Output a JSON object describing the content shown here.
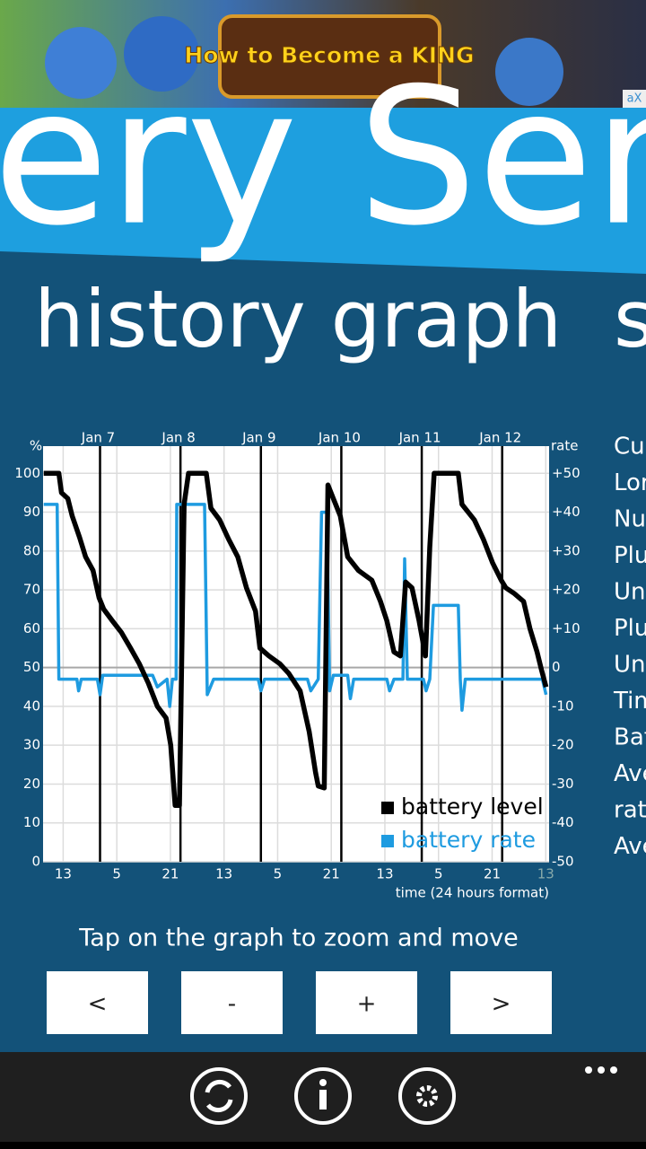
{
  "ad": {
    "text": "How to Become a KING",
    "badge": "aX"
  },
  "app_title": "ery Sen",
  "pivot": {
    "current": "history graph",
    "next": "s"
  },
  "chart_data": {
    "type": "line",
    "y_label": "%",
    "y2_label": "rate",
    "x_label": "time (24 hours format)",
    "xlim": [
      -17,
      134
    ],
    "xticks": [
      {
        "value": -11,
        "label": "13"
      },
      5,
      21,
      {
        "value": 37,
        "label": "13"
      },
      {
        "value": 53,
        "label": "5"
      },
      {
        "value": 69,
        "label": "21"
      },
      {
        "value": 85,
        "label": "13"
      },
      {
        "value": 101,
        "label": "5"
      },
      {
        "value": 117,
        "label": "21"
      },
      {
        "value": 133,
        "label": "13"
      }
    ],
    "x2ticks": [
      {
        "value": 0,
        "label": "Jan 7"
      },
      {
        "value": 24,
        "label": "Jan 8"
      },
      {
        "value": 48,
        "label": "Jan 9"
      },
      {
        "value": 72,
        "label": "Jan 10"
      },
      {
        "value": 96,
        "label": "Jan 11"
      },
      {
        "value": 120,
        "label": "Jan 12"
      }
    ],
    "ylim": [
      0,
      107
    ],
    "yticks": [
      0,
      10,
      20,
      30,
      40,
      50,
      60,
      70,
      80,
      90,
      100
    ],
    "y2lim": [
      -50,
      57
    ],
    "y2ticks": [
      -50,
      -40,
      -30,
      -20,
      -10,
      0,
      {
        "value": 10,
        "label": "+10"
      },
      {
        "value": 20,
        "label": "+20"
      },
      {
        "value": 30,
        "label": "+30"
      },
      {
        "value": 40,
        "label": "+40"
      },
      {
        "value": 50,
        "label": "+50"
      }
    ],
    "grid": true,
    "legend": "lower right",
    "series": [
      {
        "name": "battery level",
        "color": "#000000",
        "x": [
          -16.8,
          -12.3,
          -11.5,
          -9.6,
          -8.3,
          -6.1,
          -4.3,
          -2.1,
          -0.3,
          1.1,
          3.7,
          6.4,
          9.1,
          11.7,
          14.4,
          17.1,
          19.7,
          21.1,
          22.4,
          23.7,
          25.1,
          26.4,
          31.7,
          33.1,
          35.7,
          38.4,
          41.1,
          43.7,
          46.4,
          47.7,
          50.4,
          53.6,
          56.3,
          59.7,
          62.4,
          64.3,
          65.1,
          66.9,
          68,
          69.6,
          71.7,
          73.9,
          77.1,
          81.1,
          83.7,
          85.6,
          87.7,
          89.6,
          91.2,
          93.1,
          95.2,
          97.1,
          98.4,
          99.7,
          106.9,
          108,
          111.7,
          114.4,
          117.1,
          119.7,
          121.1,
          123.7,
          126.4,
          128.3,
          130.4,
          131.7,
          133.1
        ],
        "values": [
          100,
          100,
          95,
          93.5,
          89,
          83.5,
          78.5,
          75,
          68,
          65,
          62,
          59,
          55,
          51,
          46,
          40,
          37,
          30,
          14.5,
          14.5,
          92,
          100,
          100,
          91,
          88,
          83,
          78.5,
          70.5,
          64.5,
          55,
          53,
          51,
          48.5,
          44,
          33.5,
          23,
          19.5,
          19,
          97,
          93.5,
          89,
          78.5,
          75,
          72.5,
          67,
          62,
          54,
          53,
          72,
          70.5,
          62,
          53,
          81,
          100,
          100,
          92,
          88,
          83,
          77,
          72.5,
          70.5,
          69,
          67,
          60,
          54,
          49.5,
          45
        ]
      },
      {
        "name": "battery rate",
        "color": "#1e9be0",
        "axis": "y2",
        "x": [
          -16.8,
          -12.8,
          -12.3,
          -6.9,
          -6.4,
          -5.6,
          -0.8,
          0,
          0.8,
          15.7,
          17.1,
          20,
          20.8,
          21.6,
          22.7,
          22.9,
          31.2,
          32,
          33.9,
          47.2,
          48,
          49.1,
          61.9,
          62.9,
          65.1,
          66.1,
          67.7,
          68.5,
          69.6,
          73.9,
          74.7,
          75.7,
          85.6,
          86.4,
          87.7,
          90.4,
          90.9,
          91.7,
          96.5,
          97.3,
          98.4,
          99.5,
          106.9,
          107.5,
          108,
          109,
          132,
          133.1
        ],
        "values": [
          42,
          42,
          -3,
          -3,
          -6,
          -3,
          -3,
          -7,
          -2,
          -2,
          -5,
          -3,
          -10,
          -3,
          -3,
          42,
          42,
          -7,
          -3,
          -3,
          -6,
          -3,
          -3,
          -6,
          -3,
          40,
          40,
          -6,
          -2,
          -2,
          -8,
          -3,
          -3,
          -6,
          -3,
          -3,
          28,
          -3,
          -3,
          -6,
          -3,
          16,
          16,
          -3,
          -11,
          -3,
          -3,
          -7
        ]
      }
    ]
  },
  "hint": "Tap on the graph to zoom and move",
  "buttons": [
    "<",
    "-",
    "+",
    ">"
  ],
  "stats_labels": [
    "Cu",
    "Lor",
    "Nu",
    "Plu",
    "Un",
    "Plu",
    "Un",
    "Tim",
    "Bat",
    "Ave",
    "rate",
    "Ave"
  ]
}
